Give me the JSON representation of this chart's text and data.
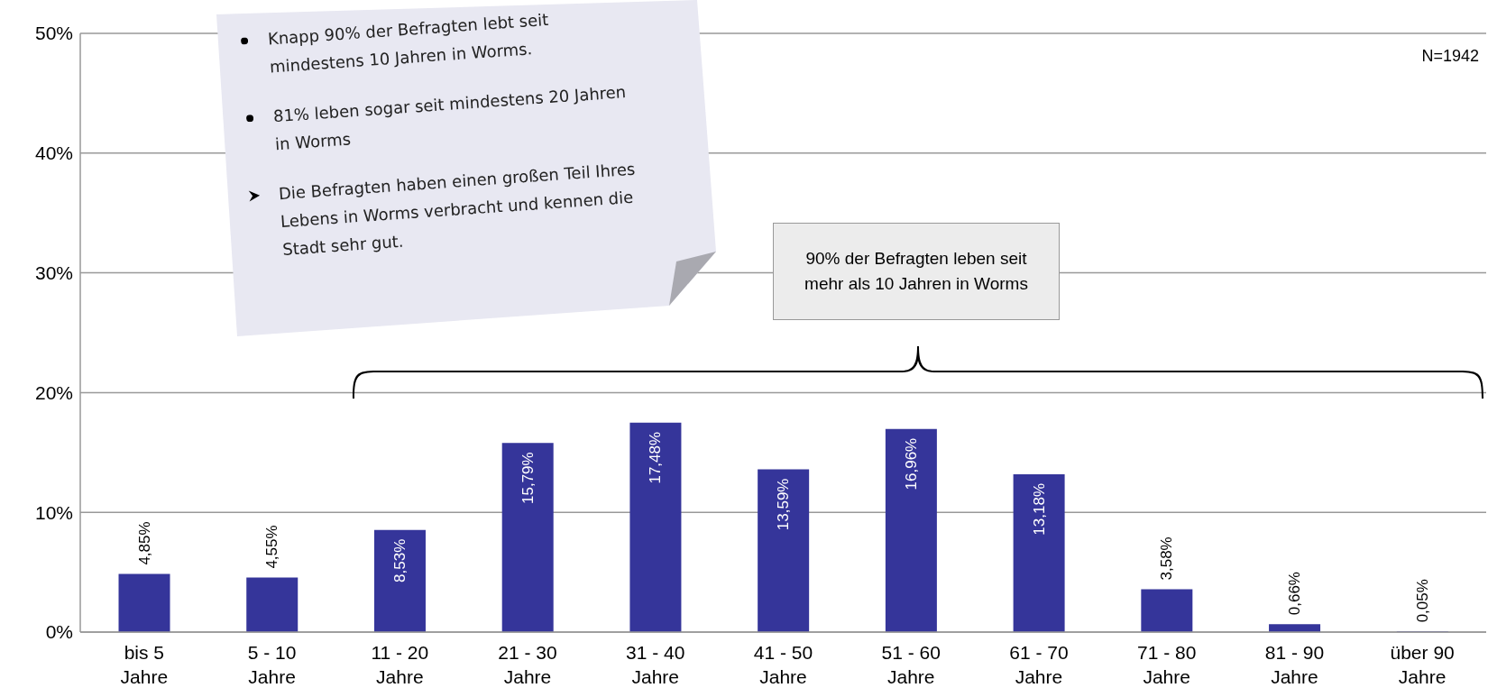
{
  "chart_data": {
    "type": "bar",
    "categories": [
      "bis 5 Jahre",
      "5 - 10 Jahre",
      "11 - 20 Jahre",
      "21 - 30 Jahre",
      "31 - 40 Jahre",
      "41 - 50 Jahre",
      "51 - 60 Jahre",
      "61 - 70 Jahre",
      "71 - 80 Jahre",
      "81 - 90 Jahre",
      "über 90 Jahre"
    ],
    "values": [
      4.85,
      4.55,
      8.53,
      15.79,
      17.48,
      13.59,
      16.96,
      13.18,
      3.58,
      0.66,
      0.05
    ],
    "value_labels": [
      "4,85%",
      "4,55%",
      "8,53%",
      "15,79%",
      "17,48%",
      "13,59%",
      "16,96%",
      "13,18%",
      "3,58%",
      "0,66%",
      "0,05%"
    ],
    "color": "#35359a",
    "ylim": [
      0,
      50
    ],
    "yticks": [
      {
        "value": 0,
        "label": "0%"
      },
      {
        "value": 10,
        "label": "10%"
      },
      {
        "value": 20,
        "label": "20%"
      },
      {
        "value": 30,
        "label": "30%"
      },
      {
        "value": 40,
        "label": "40%"
      },
      {
        "value": 50,
        "label": "50%"
      }
    ],
    "grid": "y",
    "annotations": [
      "Knapp 90% der Befragten lebt seit mindestens 10 Jahren in Worms.",
      "81% leben sogar seit mindestens 20 Jahren in Worms",
      "Die Befragten haben einen großen Teil Ihres Lebens in Worms verbracht und kennen die Stadt sehr gut.",
      "90% der Befragten leben seit mehr als 10 Jahren in Worms",
      "N=1942"
    ]
  }
}
